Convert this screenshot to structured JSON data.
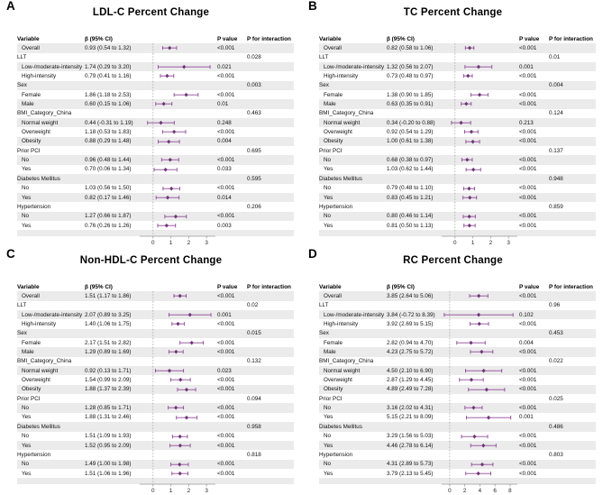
{
  "figure": {
    "background": "#ffffff",
    "accent_color": "#8d4a96",
    "marker_color": "#6e3577",
    "stripe_color": "#ebebeb",
    "reference_line_color": "#a3a3a3",
    "axis_color": "#9a9a9a"
  },
  "columns": {
    "variable": "Variable",
    "beta": "β (95% CI)",
    "p_value": "P value",
    "p_interaction": "P for interaction"
  },
  "chart_data": [
    {
      "type": "scatter",
      "subtype": "forest-plot",
      "panel_label": "A",
      "title": "LDL-C Percent Change",
      "xlim": [
        -0.85,
        3.6
      ],
      "xticks": [
        0,
        1,
        2,
        3
      ],
      "reference_line": 0,
      "rows": [
        {
          "label": "Overall",
          "indent": true,
          "beta": "0.93 (0.54 to 1.32)",
          "est": 0.93,
          "lo": 0.54,
          "hi": 1.32,
          "p": "<0.001",
          "p_int": ""
        },
        {
          "label": "LLT",
          "indent": false,
          "p_int": "0.028"
        },
        {
          "label": "Low-/moderate-intensity",
          "indent": true,
          "beta": "1.74 (0.29 to 3.20)",
          "est": 1.74,
          "lo": 0.29,
          "hi": 3.2,
          "p": "0.021",
          "p_int": ""
        },
        {
          "label": "High-intensity",
          "indent": true,
          "beta": "0.79 (0.41 to 1.16)",
          "est": 0.79,
          "lo": 0.41,
          "hi": 1.16,
          "p": "<0.001",
          "p_int": ""
        },
        {
          "label": "Sex",
          "indent": false,
          "p_int": "0.003"
        },
        {
          "label": "Female",
          "indent": true,
          "beta": "1.86 (1.18 to 2.53)",
          "est": 1.86,
          "lo": 1.18,
          "hi": 2.53,
          "p": "<0.001",
          "p_int": ""
        },
        {
          "label": "Male",
          "indent": true,
          "beta": "0.60 (0.15 to 1.06)",
          "est": 0.6,
          "lo": 0.15,
          "hi": 1.06,
          "p": "0.01",
          "p_int": ""
        },
        {
          "label": "BMI_Category_China",
          "indent": false,
          "p_int": "0.463"
        },
        {
          "label": "Normal weight",
          "indent": true,
          "beta": "0.44 (-0.31 to 1.19)",
          "est": 0.44,
          "lo": -0.31,
          "hi": 1.19,
          "p": "0.248",
          "p_int": ""
        },
        {
          "label": "Overweight",
          "indent": true,
          "beta": "1.18 (0.53 to 1.83)",
          "est": 1.18,
          "lo": 0.53,
          "hi": 1.83,
          "p": "<0.001",
          "p_int": ""
        },
        {
          "label": "Obesity",
          "indent": true,
          "beta": "0.88 (0.29 to 1.48)",
          "est": 0.88,
          "lo": 0.29,
          "hi": 1.48,
          "p": "0.004",
          "p_int": ""
        },
        {
          "label": "Prior PCI",
          "indent": false,
          "p_int": "0.695"
        },
        {
          "label": "No",
          "indent": true,
          "beta": "0.96 (0.48 to 1.44)",
          "est": 0.96,
          "lo": 0.48,
          "hi": 1.44,
          "p": "<0.001",
          "p_int": ""
        },
        {
          "label": "Yes",
          "indent": true,
          "beta": "0.70 (0.06 to 1.34)",
          "est": 0.7,
          "lo": 0.06,
          "hi": 1.34,
          "p": "0.033",
          "p_int": ""
        },
        {
          "label": "Diabetes Mellitus",
          "indent": false,
          "p_int": "0.595"
        },
        {
          "label": "No",
          "indent": true,
          "beta": "1.03 (0.56 to 1.50)",
          "est": 1.03,
          "lo": 0.56,
          "hi": 1.5,
          "p": "<0.001",
          "p_int": ""
        },
        {
          "label": "Yes",
          "indent": true,
          "beta": "0.82 (0.17 to 1.46)",
          "est": 0.82,
          "lo": 0.17,
          "hi": 1.46,
          "p": "0.014",
          "p_int": ""
        },
        {
          "label": "Hypertension",
          "indent": false,
          "p_int": "0.206"
        },
        {
          "label": "No",
          "indent": true,
          "beta": "1.27 (0.66 to 1.87)",
          "est": 1.27,
          "lo": 0.66,
          "hi": 1.87,
          "p": "<0.001",
          "p_int": ""
        },
        {
          "label": "Yes",
          "indent": true,
          "beta": "0.76 (0.26 to 1.26)",
          "est": 0.76,
          "lo": 0.26,
          "hi": 1.26,
          "p": "0.003",
          "p_int": ""
        }
      ]
    },
    {
      "type": "scatter",
      "subtype": "forest-plot",
      "panel_label": "B",
      "title": "TC Percent Change",
      "xlim": [
        -0.85,
        3.6
      ],
      "xticks": [
        0,
        1,
        2,
        3
      ],
      "reference_line": 0,
      "rows": [
        {
          "label": "Overall",
          "indent": true,
          "beta": "0.82 (0.58 to 1.06)",
          "est": 0.82,
          "lo": 0.58,
          "hi": 1.06,
          "p": "<0.001",
          "p_int": ""
        },
        {
          "label": "LLT",
          "indent": false,
          "p_int": "0.01"
        },
        {
          "label": "Low-/moderate-intensity",
          "indent": true,
          "beta": "1.32 (0.56 to 2.07)",
          "est": 1.32,
          "lo": 0.56,
          "hi": 2.07,
          "p": "0.001",
          "p_int": ""
        },
        {
          "label": "High-intensity",
          "indent": true,
          "beta": "0.73 (0.48 to 0.97)",
          "est": 0.73,
          "lo": 0.48,
          "hi": 0.97,
          "p": "<0.001",
          "p_int": ""
        },
        {
          "label": "Sex",
          "indent": false,
          "p_int": "0.004"
        },
        {
          "label": "Female",
          "indent": true,
          "beta": "1.38 (0.90 to 1.85)",
          "est": 1.38,
          "lo": 0.9,
          "hi": 1.85,
          "p": "<0.001",
          "p_int": ""
        },
        {
          "label": "Male",
          "indent": true,
          "beta": "0.63 (0.35 to 0.91)",
          "est": 0.63,
          "lo": 0.35,
          "hi": 0.91,
          "p": "<0.001",
          "p_int": ""
        },
        {
          "label": "BMI_Category_China",
          "indent": false,
          "p_int": "0.124"
        },
        {
          "label": "Normal weight",
          "indent": true,
          "beta": "0.34 (-0.20 to 0.88)",
          "est": 0.34,
          "lo": -0.2,
          "hi": 0.88,
          "p": "0.213",
          "p_int": ""
        },
        {
          "label": "Overweight",
          "indent": true,
          "beta": "0.92 (0.54 to 1.29)",
          "est": 0.92,
          "lo": 0.54,
          "hi": 1.29,
          "p": "<0.001",
          "p_int": ""
        },
        {
          "label": "Obesity",
          "indent": true,
          "beta": "1.00 (0.61 to 1.38)",
          "est": 1.0,
          "lo": 0.61,
          "hi": 1.38,
          "p": "<0.001",
          "p_int": ""
        },
        {
          "label": "Prior PCI",
          "indent": false,
          "p_int": "0.137"
        },
        {
          "label": "No",
          "indent": true,
          "beta": "0.68 (0.38 to 0.97)",
          "est": 0.68,
          "lo": 0.38,
          "hi": 0.97,
          "p": "<0.001",
          "p_int": ""
        },
        {
          "label": "Yes",
          "indent": true,
          "beta": "1.03 (0.62 to 1.44)",
          "est": 1.03,
          "lo": 0.62,
          "hi": 1.44,
          "p": "<0.001",
          "p_int": ""
        },
        {
          "label": "Diabetes Mellitus",
          "indent": false,
          "p_int": "0.948"
        },
        {
          "label": "No",
          "indent": true,
          "beta": "0.79 (0.48 to 1.10)",
          "est": 0.79,
          "lo": 0.48,
          "hi": 1.1,
          "p": "<0.001",
          "p_int": ""
        },
        {
          "label": "Yes",
          "indent": true,
          "beta": "0.83 (0.45 to 1.21)",
          "est": 0.83,
          "lo": 0.45,
          "hi": 1.21,
          "p": "<0.001",
          "p_int": ""
        },
        {
          "label": "Hypertension",
          "indent": false,
          "p_int": "0.859"
        },
        {
          "label": "No",
          "indent": true,
          "beta": "0.80 (0.46 to 1.14)",
          "est": 0.8,
          "lo": 0.46,
          "hi": 1.14,
          "p": "<0.001",
          "p_int": ""
        },
        {
          "label": "Yes",
          "indent": true,
          "beta": "0.81 (0.50 to 1.13)",
          "est": 0.81,
          "lo": 0.5,
          "hi": 1.13,
          "p": "<0.001",
          "p_int": ""
        }
      ]
    },
    {
      "type": "scatter",
      "subtype": "forest-plot",
      "panel_label": "C",
      "title": "Non-HDL-C Percent Change",
      "xlim": [
        -0.85,
        3.6
      ],
      "xticks": [
        0,
        1,
        2,
        3
      ],
      "reference_line": 0,
      "rows": [
        {
          "label": "Overall",
          "indent": true,
          "beta": "1.51 (1.17 to 1.86)",
          "est": 1.51,
          "lo": 1.17,
          "hi": 1.86,
          "p": "<0.001",
          "p_int": ""
        },
        {
          "label": "LLT",
          "indent": false,
          "p_int": "0.02"
        },
        {
          "label": "Low-/moderate-intensity",
          "indent": true,
          "beta": "2.07 (0.89 to 3.25)",
          "est": 2.07,
          "lo": 0.89,
          "hi": 3.25,
          "p": "0.001",
          "p_int": ""
        },
        {
          "label": "High-intensity",
          "indent": true,
          "beta": "1.40 (1.06 to 1.75)",
          "est": 1.4,
          "lo": 1.06,
          "hi": 1.75,
          "p": "<0.001",
          "p_int": ""
        },
        {
          "label": "Sex",
          "indent": false,
          "p_int": "0.015"
        },
        {
          "label": "Female",
          "indent": true,
          "beta": "2.17 (1.51 to 2.82)",
          "est": 2.17,
          "lo": 1.51,
          "hi": 2.82,
          "p": "<0.001",
          "p_int": ""
        },
        {
          "label": "Male",
          "indent": true,
          "beta": "1.29 (0.89 to 1.69)",
          "est": 1.29,
          "lo": 0.89,
          "hi": 1.69,
          "p": "<0.001",
          "p_int": ""
        },
        {
          "label": "BMI_Category_China",
          "indent": false,
          "p_int": "0.132"
        },
        {
          "label": "Normal weight",
          "indent": true,
          "beta": "0.92 (0.13 to 1.71)",
          "est": 0.92,
          "lo": 0.13,
          "hi": 1.71,
          "p": "0.023",
          "p_int": ""
        },
        {
          "label": "Overweight",
          "indent": true,
          "beta": "1.54 (0.99 to 2.09)",
          "est": 1.54,
          "lo": 0.99,
          "hi": 2.09,
          "p": "<0.001",
          "p_int": ""
        },
        {
          "label": "Obesity",
          "indent": true,
          "beta": "1.88 (1.37 to 2.39)",
          "est": 1.88,
          "lo": 1.37,
          "hi": 2.39,
          "p": "<0.001",
          "p_int": ""
        },
        {
          "label": "Prior PCI",
          "indent": false,
          "p_int": "0.094"
        },
        {
          "label": "No",
          "indent": true,
          "beta": "1.28 (0.85 to 1.71)",
          "est": 1.28,
          "lo": 0.85,
          "hi": 1.71,
          "p": "<0.001",
          "p_int": ""
        },
        {
          "label": "Yes",
          "indent": true,
          "beta": "1.88 (1.31 to 2.46)",
          "est": 1.88,
          "lo": 1.31,
          "hi": 2.46,
          "p": "<0.001",
          "p_int": ""
        },
        {
          "label": "Diabetes Mellitus",
          "indent": false,
          "p_int": "0.958"
        },
        {
          "label": "No",
          "indent": true,
          "beta": "1.51 (1.09 to 1.93)",
          "est": 1.51,
          "lo": 1.09,
          "hi": 1.93,
          "p": "<0.001",
          "p_int": ""
        },
        {
          "label": "Yes",
          "indent": true,
          "beta": "1.52 (0.95 to 2.09)",
          "est": 1.52,
          "lo": 0.95,
          "hi": 2.09,
          "p": "<0.001",
          "p_int": ""
        },
        {
          "label": "Hypertension",
          "indent": false,
          "p_int": "0.818"
        },
        {
          "label": "No",
          "indent": true,
          "beta": "1.49 (1.00 to 1.98)",
          "est": 1.49,
          "lo": 1.0,
          "hi": 1.98,
          "p": "<0.001",
          "p_int": ""
        },
        {
          "label": "Yes",
          "indent": true,
          "beta": "1.51 (1.06 to 1.96)",
          "est": 1.51,
          "lo": 1.06,
          "hi": 1.96,
          "p": "<0.001",
          "p_int": ""
        }
      ]
    },
    {
      "type": "scatter",
      "subtype": "forest-plot",
      "panel_label": "D",
      "title": "RC Percent Change",
      "xlim": [
        -1.3,
        9.2
      ],
      "xticks": [
        0,
        2,
        4,
        6,
        8
      ],
      "reference_line": 0,
      "rows": [
        {
          "label": "Overall",
          "indent": true,
          "beta": "3.85 (2.64 to 5.06)",
          "est": 3.85,
          "lo": 2.64,
          "hi": 5.06,
          "p": "<0.001",
          "p_int": ""
        },
        {
          "label": "LLT",
          "indent": false,
          "p_int": "0.96"
        },
        {
          "label": "Low-/moderate-intensity",
          "indent": true,
          "beta": "3.84 (-0.72 to 8.39)",
          "est": 3.84,
          "lo": -0.72,
          "hi": 8.39,
          "p": "0.102",
          "p_int": ""
        },
        {
          "label": "High-intensity",
          "indent": true,
          "beta": "3.92 (2.69 to 5.15)",
          "est": 3.92,
          "lo": 2.69,
          "hi": 5.15,
          "p": "<0.001",
          "p_int": ""
        },
        {
          "label": "Sex",
          "indent": false,
          "p_int": "0.453"
        },
        {
          "label": "Female",
          "indent": true,
          "beta": "2.82 (0.94 to 4.70)",
          "est": 2.82,
          "lo": 0.94,
          "hi": 4.7,
          "p": "0.004",
          "p_int": ""
        },
        {
          "label": "Male",
          "indent": true,
          "beta": "4.23 (2.75 to 5.72)",
          "est": 4.23,
          "lo": 2.75,
          "hi": 5.72,
          "p": "<0.001",
          "p_int": ""
        },
        {
          "label": "BMI_Category_China",
          "indent": false,
          "p_int": "0.022"
        },
        {
          "label": "Normal weight",
          "indent": true,
          "beta": "4.50 (2.10 to 6.90)",
          "est": 4.5,
          "lo": 2.1,
          "hi": 6.9,
          "p": "<0.001",
          "p_int": ""
        },
        {
          "label": "Overweight",
          "indent": true,
          "beta": "2.87 (1.29 to 4.45)",
          "est": 2.87,
          "lo": 1.29,
          "hi": 4.45,
          "p": "<0.001",
          "p_int": ""
        },
        {
          "label": "Obesity",
          "indent": true,
          "beta": "4.89 (2.49 to 7.28)",
          "est": 4.89,
          "lo": 2.49,
          "hi": 7.28,
          "p": "<0.001",
          "p_int": ""
        },
        {
          "label": "Prior PCI",
          "indent": false,
          "p_int": "0.025"
        },
        {
          "label": "No",
          "indent": true,
          "beta": "3.16 (2.02 to 4.31)",
          "est": 3.16,
          "lo": 2.02,
          "hi": 4.31,
          "p": "<0.001",
          "p_int": ""
        },
        {
          "label": "Yes",
          "indent": true,
          "beta": "5.15 (2.21 to 8.09)",
          "est": 5.15,
          "lo": 2.21,
          "hi": 8.09,
          "p": "0.001",
          "p_int": ""
        },
        {
          "label": "Diabetes Mellitus",
          "indent": false,
          "p_int": "0.486"
        },
        {
          "label": "No",
          "indent": true,
          "beta": "3.29 (1.56 to 5.03)",
          "est": 3.29,
          "lo": 1.56,
          "hi": 5.03,
          "p": "<0.001",
          "p_int": ""
        },
        {
          "label": "Yes",
          "indent": true,
          "beta": "4.46 (2.78 to 6.14)",
          "est": 4.46,
          "lo": 2.78,
          "hi": 6.14,
          "p": "<0.001",
          "p_int": ""
        },
        {
          "label": "Hypertension",
          "indent": false,
          "p_int": "0.803"
        },
        {
          "label": "No",
          "indent": true,
          "beta": "4.31 (2.89 to 5.73)",
          "est": 4.31,
          "lo": 2.89,
          "hi": 5.73,
          "p": "<0.001",
          "p_int": ""
        },
        {
          "label": "Yes",
          "indent": true,
          "beta": "3.79 (2.13 to 5.45)",
          "est": 3.79,
          "lo": 2.13,
          "hi": 5.45,
          "p": "<0.001",
          "p_int": ""
        }
      ]
    }
  ]
}
